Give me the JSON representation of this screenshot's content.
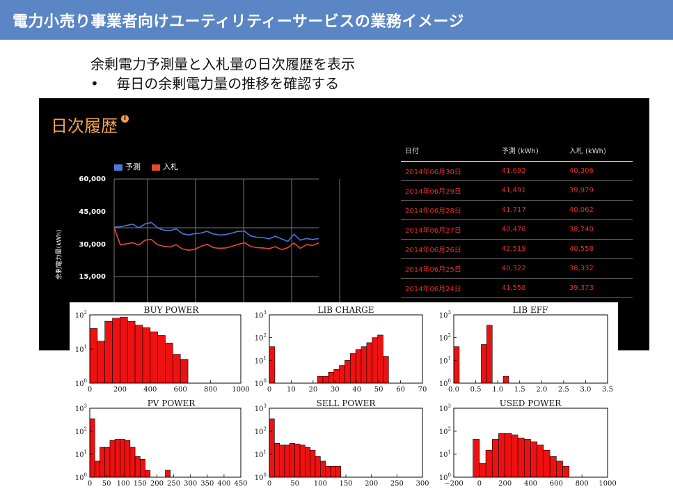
{
  "page_title": "電力小売り事業者向けユーティリティーサービスの業務イメージ",
  "intro": {
    "line1": "余剰電力予測量と入札量の日次履歴を表示",
    "bullet_marker": "•",
    "line2": "毎日の余剰電力量の推移を確認する"
  },
  "dashboard": {
    "title": "日次履歴",
    "info_icon": "info-icon",
    "accent_color": "#f0a24a",
    "legend": [
      {
        "name": "予測",
        "color": "#4a78d8"
      },
      {
        "name": "入札",
        "color": "#e64a2e"
      }
    ],
    "y_axis_label": "余剰電力量(kWh)",
    "table": {
      "headers": [
        "日付",
        "予測 (kWh)",
        "入札 (kWh)"
      ],
      "rows": [
        [
          "2014年06月30日",
          "41,692",
          "40,306"
        ],
        [
          "2014年06月29日",
          "41,491",
          "39,979"
        ],
        [
          "2014年06月28日",
          "41,717",
          "40,062"
        ],
        [
          "2014年06月27日",
          "40,476",
          "38,740"
        ],
        [
          "2014年06月26日",
          "42,519",
          "40,558"
        ],
        [
          "2014年06月25日",
          "40,322",
          "38,332"
        ],
        [
          "2014年06月24日",
          "41,558",
          "39,373"
        ]
      ]
    }
  },
  "chart_data": [
    {
      "type": "line",
      "y_ticks": [
        "60,000",
        "45,000",
        "30,000",
        "15,000"
      ],
      "ylim": [
        0,
        60000
      ],
      "grid": true,
      "legend_position": "top-left",
      "series": [
        {
          "name": "予測",
          "color": "#4a78d8",
          "values": [
            45200,
            45300,
            45700,
            46100,
            45000,
            46200,
            46600,
            45000,
            44300,
            44100,
            44700,
            43200,
            42800,
            43200,
            43400,
            43900,
            43100,
            42800,
            42900,
            43400,
            43900,
            44000,
            42500,
            42100,
            42000,
            41600,
            42400,
            41600,
            40800,
            43000,
            41200,
            41700,
            41400,
            41692
          ]
        },
        {
          "name": "入札",
          "color": "#e64a2e",
          "values": [
            45000,
            39800,
            40100,
            40400,
            39700,
            41200,
            41400,
            39800,
            39300,
            39100,
            39800,
            38500,
            38100,
            38400,
            39300,
            39900,
            38900,
            38700,
            38800,
            39300,
            39900,
            40400,
            39300,
            38900,
            38800,
            38600,
            39200,
            38300,
            38900,
            40300,
            38700,
            39800,
            39600,
            40306
          ]
        }
      ]
    },
    {
      "type": "bar",
      "title": "BUY POWER",
      "xlim": [
        0,
        1000
      ],
      "x_ticks": [
        "0",
        "200",
        "400",
        "600",
        "800",
        "1000"
      ],
      "y_log": true,
      "y_decades": 2,
      "y_ticks": [
        "10^0",
        "10^1",
        "10^2"
      ],
      "bins_start": 0,
      "bin_width": 50,
      "values": [
        40,
        17,
        65,
        80,
        85,
        65,
        50,
        42,
        32,
        25,
        15,
        7,
        5
      ]
    },
    {
      "type": "bar",
      "title": "LIB CHARGE",
      "xlim": [
        0,
        70
      ],
      "x_ticks": [
        "0",
        "10",
        "20",
        "30",
        "40",
        "50",
        "60",
        "70"
      ],
      "y_log": true,
      "y_decades": 3,
      "y_ticks": [
        "10^0",
        "10^1",
        "10^2",
        "10^3"
      ],
      "bins": [
        [
          0,
          2.5,
          40
        ],
        [
          22,
          24.5,
          2
        ],
        [
          24.5,
          27,
          2
        ],
        [
          27,
          29.5,
          3
        ],
        [
          29.5,
          32,
          4
        ],
        [
          32,
          34.5,
          6
        ],
        [
          34.5,
          37,
          10
        ],
        [
          37,
          39.5,
          20
        ],
        [
          39.5,
          42,
          30
        ],
        [
          42,
          44.5,
          40
        ],
        [
          44.5,
          47,
          60
        ],
        [
          47,
          49.5,
          100
        ],
        [
          49.5,
          52,
          130
        ],
        [
          52,
          54.5,
          15
        ]
      ],
      "note": "bins given as [start,end,count] in data units"
    },
    {
      "type": "bar",
      "title": "LIB EFF",
      "xlim": [
        0,
        3.5
      ],
      "x_ticks": [
        "0.0",
        "0.5",
        "1.0",
        "1.5",
        "2.0",
        "2.5",
        "3.0",
        "3.5"
      ],
      "y_log": true,
      "y_decades": 3,
      "y_ticks": [
        "10^0",
        "10^1",
        "10^2",
        "10^3"
      ],
      "bins": [
        [
          0,
          0.125,
          40
        ],
        [
          0.625,
          0.75,
          50
        ],
        [
          0.75,
          0.875,
          350
        ],
        [
          1.125,
          1.25,
          2
        ]
      ]
    },
    {
      "type": "bar",
      "title": "PV POWER",
      "xlim": [
        0,
        450
      ],
      "x_ticks": [
        "0",
        "50",
        "100",
        "150",
        "200",
        "250",
        "300",
        "350",
        "400",
        "450"
      ],
      "y_log": true,
      "y_decades": 3,
      "y_ticks": [
        "10^0",
        "10^1",
        "10^2",
        "10^3"
      ],
      "bins_start": 0,
      "bin_width": 15,
      "values": [
        350,
        5,
        20,
        20,
        40,
        45,
        45,
        40,
        20,
        8,
        6,
        2,
        0,
        0,
        0,
        2
      ]
    },
    {
      "type": "bar",
      "title": "SELL POWER",
      "xlim": [
        0,
        300
      ],
      "x_ticks": [
        "0",
        "50",
        "100",
        "150",
        "200",
        "250",
        "300"
      ],
      "y_log": true,
      "y_decades": 3,
      "y_ticks": [
        "10^0",
        "10^1",
        "10^2",
        "10^3"
      ],
      "bins_start": 0,
      "bin_width": 10,
      "values": [
        350,
        30,
        25,
        25,
        30,
        28,
        25,
        20,
        15,
        8,
        5,
        3,
        3,
        3
      ]
    },
    {
      "type": "bar",
      "title": "USED POWER",
      "xlim": [
        -200,
        1000
      ],
      "x_ticks": [
        "−200",
        "0",
        "200",
        "400",
        "600",
        "800",
        "1000"
      ],
      "y_log": true,
      "y_decades": 3,
      "y_ticks": [
        "10^0",
        "10^1",
        "10^2",
        "10^3"
      ],
      "bins_start": -50,
      "bin_width": 50,
      "values": [
        45,
        4,
        15,
        45,
        80,
        80,
        70,
        50,
        45,
        35,
        25,
        15,
        8,
        5,
        3
      ]
    }
  ]
}
